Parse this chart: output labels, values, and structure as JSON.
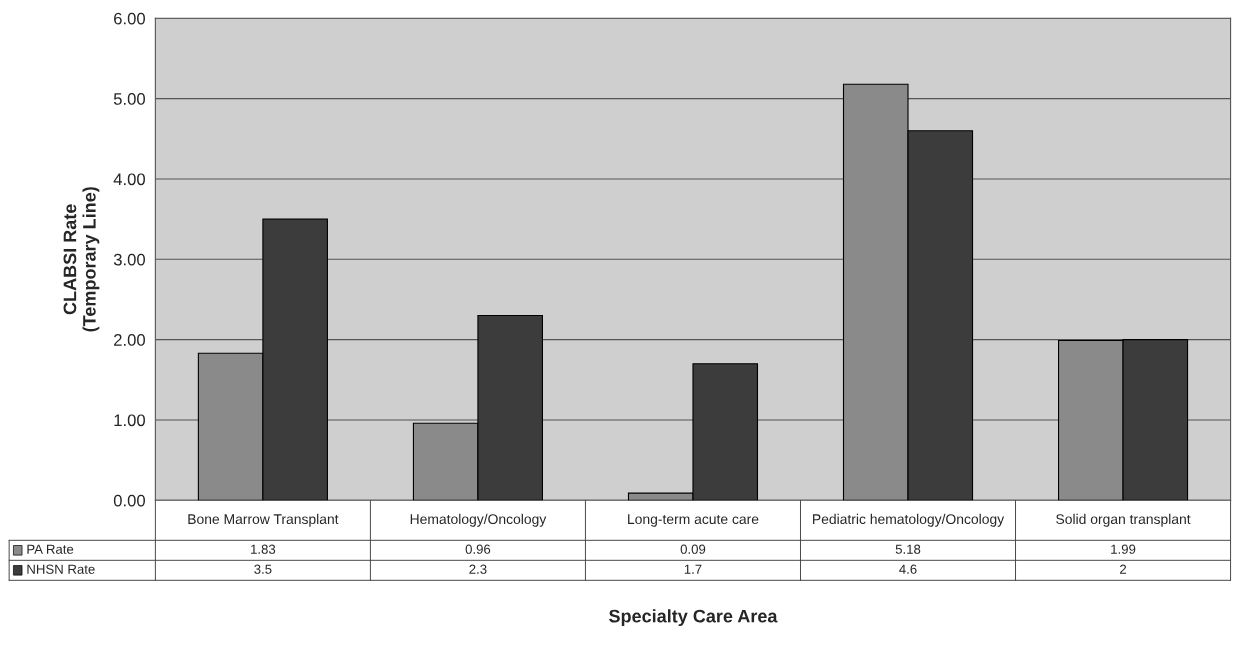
{
  "chart_data": {
    "type": "bar",
    "xlabel": "Specialty Care Area",
    "ylabel": "CLABSI Rate\n(Temporary Line)",
    "categories": [
      "Bone Marrow Transplant",
      "Hematology/Oncology",
      "Long-term acute care",
      "Pediatric hematology/Oncology",
      "Solid organ transplant"
    ],
    "series": [
      {
        "name": "PA Rate",
        "color": "#8a8a8a",
        "values": [
          1.83,
          0.96,
          0.09,
          5.18,
          1.99
        ]
      },
      {
        "name": "NHSN Rate",
        "color": "#3c3c3c",
        "values": [
          3.5,
          2.3,
          1.7,
          4.6,
          2
        ]
      }
    ],
    "ylim": [
      0,
      6
    ],
    "yticks": [
      {
        "value": 0,
        "label": "0.00"
      },
      {
        "value": 1,
        "label": "1.00"
      },
      {
        "value": 2,
        "label": "2.00"
      },
      {
        "value": 3,
        "label": "3.00"
      },
      {
        "value": 4,
        "label": "4.00"
      },
      {
        "value": 5,
        "label": "5.00"
      },
      {
        "value": 6,
        "label": "6.00"
      }
    ],
    "grid": "y",
    "data_labels": true,
    "legend": "bottom"
  }
}
